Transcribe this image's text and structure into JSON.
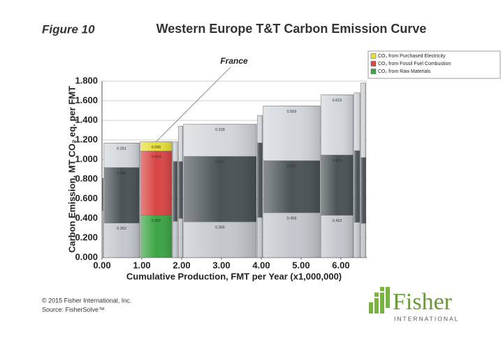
{
  "chart_data": {
    "type": "bar",
    "figure_label": "Figure 10",
    "title": "Western Europe T&T Carbon Emission Curve",
    "x_label": "Cumulative Production, FMT per Year (x1,000,000)",
    "y_label": "Carbon Emission, MT CO₂ eq. per FMT",
    "bins": [
      0,
      0.05,
      0.96,
      1.78,
      1.92,
      2.05,
      3.9,
      4.05,
      5.5,
      6.33,
      6.5,
      6.65
    ],
    "categories": [
      null,
      null,
      "France",
      null,
      null,
      null,
      null,
      null,
      null,
      null,
      null
    ],
    "series": [
      {
        "name": "CO₂ from Raw Materials",
        "color": "#3da545",
        "muted_color": "#c3c8cd",
        "values": [
          0.48,
          0.352,
          0.432,
          0.37,
          0.4,
          0.365,
          0.41,
          0.458,
          0.432,
          0.36,
          0.35
        ],
        "value_labels": [
          null,
          "0.352",
          "0.432",
          null,
          null,
          "0.365",
          null,
          "0.458",
          "0.432",
          null,
          null
        ]
      },
      {
        "name": "CO₂ from Fossil Fuel Combustion",
        "color": "#d94545",
        "muted_color": "#4b5357",
        "values": [
          0.33,
          0.566,
          0.654,
          0.61,
          0.58,
          0.667,
          0.76,
          0.53,
          0.614,
          0.73,
          0.67
        ],
        "value_labels": [
          null,
          "0.566",
          "0.654",
          null,
          null,
          "0.667",
          null,
          "0.530",
          "0.614",
          null,
          null
        ]
      },
      {
        "name": "CO₂ from Purchased Electricity",
        "color": "#e6df3c",
        "muted_color": "#d3d7db",
        "values": [
          0,
          0.251,
          0.096,
          0.2,
          0.36,
          0.328,
          0.28,
          0.559,
          0.615,
          0.59,
          0.76
        ],
        "value_labels": [
          null,
          "0.251",
          "0.096",
          null,
          null,
          "0.328",
          null,
          "0.559",
          "0.615",
          null,
          null
        ]
      }
    ],
    "xlim": [
      0,
      6.65
    ],
    "xticks": [
      {
        "value": 0,
        "label": "0.00"
      },
      {
        "value": 1,
        "label": "1.00"
      },
      {
        "value": 2,
        "label": "2.00"
      },
      {
        "value": 3,
        "label": "3.00"
      },
      {
        "value": 4,
        "label": "4.00"
      },
      {
        "value": 5,
        "label": "5.00"
      },
      {
        "value": 6,
        "label": "6.00"
      }
    ],
    "ylim": [
      0,
      1.8
    ],
    "yticks": [
      {
        "value": 0,
        "label": "0.000"
      },
      {
        "value": 0.2,
        "label": "0.200"
      },
      {
        "value": 0.4,
        "label": "0.400"
      },
      {
        "value": 0.6,
        "label": "0.600"
      },
      {
        "value": 0.8,
        "label": "0.800"
      },
      {
        "value": 1.0,
        "label": "1.000"
      },
      {
        "value": 1.2,
        "label": "1.200"
      },
      {
        "value": 1.4,
        "label": "1.400"
      },
      {
        "value": 1.6,
        "label": "1.600"
      },
      {
        "value": 1.8,
        "label": "1.800"
      }
    ],
    "grid": true,
    "legend": "top-right"
  },
  "footer": {
    "copyright": "© 2015 Fisher International, Inc.",
    "source": "Source: FisherSolve™"
  },
  "logo": {
    "name": "Fisher",
    "subtitle": "INTERNATIONAL"
  }
}
